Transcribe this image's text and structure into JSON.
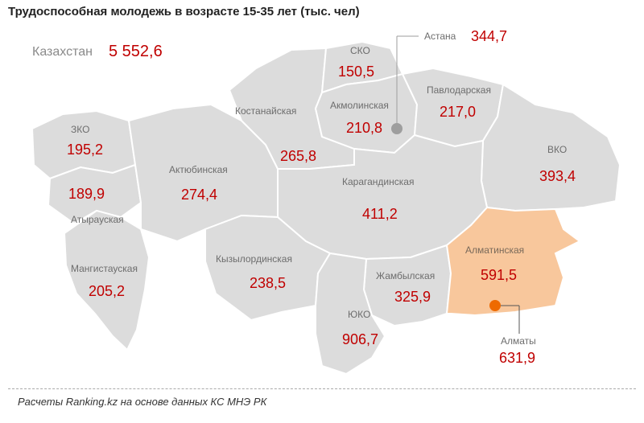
{
  "title": "Трудоспособная молодежь в возрасте 15-35 лет (тыс. чел)",
  "total": {
    "label": "Казахстан",
    "value": "5 552,6"
  },
  "regions": {
    "zko": {
      "name": "ЗКО",
      "value": "195,2"
    },
    "atyrau": {
      "name": "Атырауская",
      "value": "189,9"
    },
    "aktobe": {
      "name": "Актюбинская",
      "value": "274,4"
    },
    "mangystau": {
      "name": "Мангистауская",
      "value": "205,2"
    },
    "kostanay": {
      "name": "Костанайская",
      "value": "265,8"
    },
    "sko": {
      "name": "СКО",
      "value": "150,5"
    },
    "akmola": {
      "name": "Акмолинская",
      "value": "210,8"
    },
    "pavlodar": {
      "name": "Павлодарская",
      "value": "217,0"
    },
    "vko": {
      "name": "ВКО",
      "value": "393,4"
    },
    "karaganda": {
      "name": "Карагандинская",
      "value": "411,2"
    },
    "kyzylorda": {
      "name": "Кызылординская",
      "value": "238,5"
    },
    "zhambyl": {
      "name": "Жамбылская",
      "value": "325,9"
    },
    "almaty_region": {
      "name": "Алматинская",
      "value": "591,5"
    },
    "uko": {
      "name": "ЮКО",
      "value": "906,7"
    }
  },
  "cities": {
    "astana": {
      "name": "Астана",
      "value": "344,7"
    },
    "almaty": {
      "name": "Алматы",
      "value": "631,9"
    }
  },
  "colors": {
    "region": "#dcdcdc",
    "highlight": "#f8c79c",
    "value": "#c00000",
    "astana_marker": "#9e9e9e",
    "almaty_marker": "#ee6a00"
  },
  "source": "Расчеты Ranking.kz на основе данных КС МНЭ РК"
}
